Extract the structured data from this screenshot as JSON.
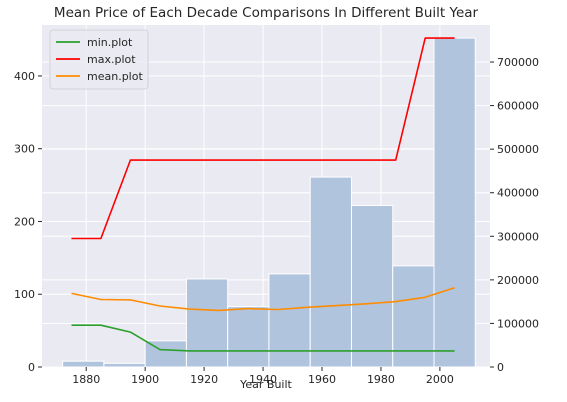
{
  "chart_data": {
    "type": "bar",
    "title": "Mean Price of Each Decade Comparisons In Different Built Year",
    "xlabel": "Year Built",
    "ylabel": "",
    "y2label": "",
    "xlim": [
      1865,
      2017
    ],
    "ylim": [
      0,
      470
    ],
    "y2lim": [
      0,
      785000
    ],
    "x_ticks": [
      1880,
      1900,
      1920,
      1940,
      1960,
      1980,
      2000
    ],
    "y_ticks": [
      0,
      100,
      200,
      300,
      400
    ],
    "y2_ticks": [
      0,
      100000,
      200000,
      300000,
      400000,
      500000,
      600000,
      700000
    ],
    "grid": true,
    "legend_position": "top-left",
    "histogram": {
      "bin_edges": [
        1872,
        1886,
        1900,
        1914,
        1928,
        1942,
        1956,
        1970,
        1984,
        1998,
        2012
      ],
      "counts": [
        8,
        5,
        36,
        121,
        83,
        128,
        261,
        222,
        139,
        452
      ],
      "color": "#b0c4de"
    },
    "series": [
      {
        "name": "min.plot",
        "color": "#2ca02c",
        "x": [
          1875,
          1885,
          1895,
          1905,
          1915,
          1925,
          1935,
          1945,
          1955,
          1965,
          1975,
          1985,
          1995,
          2005
        ],
        "values": [
          96000,
          96000,
          80000,
          40000,
          37000,
          37000,
          37000,
          37000,
          37000,
          37000,
          37000,
          37000,
          37000,
          37000
        ]
      },
      {
        "name": "max.plot",
        "color": "#ff0000",
        "x": [
          1875,
          1885,
          1895,
          1905,
          1915,
          1925,
          1935,
          1945,
          1955,
          1965,
          1975,
          1985,
          1995,
          2005
        ],
        "values": [
          295000,
          295000,
          475000,
          475000,
          475000,
          475000,
          475000,
          475000,
          475000,
          475000,
          475000,
          475000,
          755000,
          755000
        ]
      },
      {
        "name": "mean.plot",
        "color": "#ff8c00",
        "x": [
          1875,
          1885,
          1895,
          1905,
          1915,
          1925,
          1935,
          1945,
          1955,
          1965,
          1975,
          1985,
          1995,
          2005
        ],
        "values": [
          169000,
          155000,
          154000,
          140000,
          133000,
          130000,
          134000,
          132000,
          137000,
          141000,
          145000,
          150000,
          160000,
          182000
        ]
      }
    ]
  }
}
